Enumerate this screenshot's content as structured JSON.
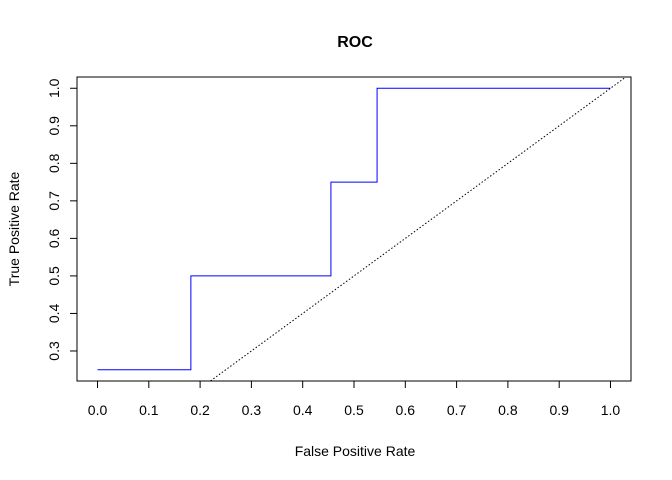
{
  "chart_data": {
    "type": "line",
    "title": "ROC",
    "xlabel": "False Positive Rate",
    "ylabel": "True Positive Rate",
    "xlim": [
      -0.04,
      1.04
    ],
    "ylim": [
      0.22,
      1.03
    ],
    "x_ticks": [
      "0.0",
      "0.1",
      "0.2",
      "0.3",
      "0.4",
      "0.5",
      "0.6",
      "0.7",
      "0.8",
      "0.9",
      "1.0"
    ],
    "y_ticks": [
      "0.3",
      "0.4",
      "0.5",
      "0.6",
      "0.7",
      "0.8",
      "0.9",
      "1.0"
    ],
    "grid": false,
    "legend": "none",
    "series": [
      {
        "style": "step",
        "color": "#0000ff",
        "x": [
          0.0,
          0.182,
          0.182,
          0.455,
          0.455,
          0.545,
          0.545,
          1.0
        ],
        "y": [
          0.25,
          0.25,
          0.5,
          0.5,
          0.75,
          0.75,
          1.0,
          1.0
        ]
      },
      {
        "style": "dotted",
        "color": "#000000",
        "x": [
          0.0,
          1.04
        ],
        "y": [
          0.0,
          1.04
        ]
      }
    ]
  }
}
